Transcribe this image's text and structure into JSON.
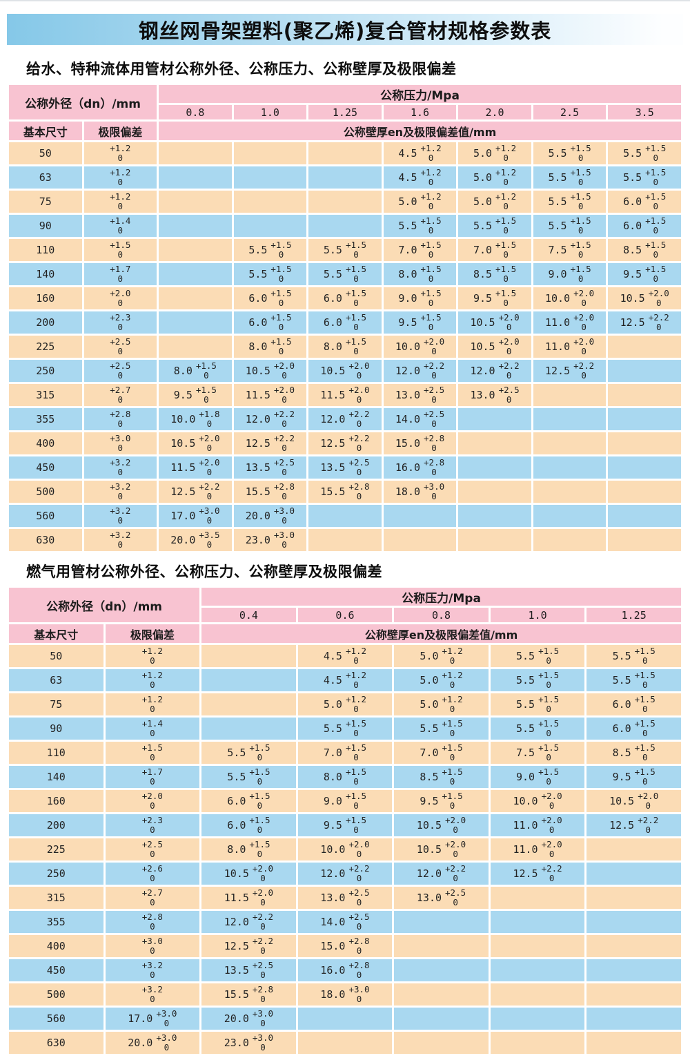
{
  "page_title": "钢丝网骨架塑料(聚乙烯)复合管材规格参数表",
  "colors": {
    "title_bar_left": "#85c8e8",
    "title_bar_right": "#fdfeff",
    "header_pink": "#f8c3d1",
    "row_peach": "#fbdcb5",
    "row_blue": "#a9d8f0"
  },
  "tables": [
    {
      "subtitle": "给水、特种流体用管材公称外径、公称压力、公称壁厚及极限偏差",
      "header": {
        "outer_diameter_label": "公称外径（dn）/mm",
        "pressure_label": "公称压力/Mpa",
        "pressures": [
          "0.8",
          "1.0",
          "1.25",
          "1.6",
          "2.0",
          "2.5",
          "3.5"
        ],
        "basic_size_label": "基本尺寸",
        "deviation_label": "极限偏差",
        "wall_thickness_label": "公称壁厚en及极限偏差值/mm"
      },
      "rows": [
        {
          "dn": "50",
          "dev": "|+1.2|0",
          "cells": [
            null,
            null,
            null,
            "4.5|+1.2|0",
            "5.0|+1.2|0",
            "5.5|+1.5|0",
            "5.5|+1.5|0"
          ]
        },
        {
          "dn": "63",
          "dev": "|+1.2|0",
          "cells": [
            null,
            null,
            null,
            "4.5|+1.2|0",
            "5.0|+1.2|0",
            "5.5|+1.5|0",
            "5.5|+1.5|0"
          ]
        },
        {
          "dn": "75",
          "dev": "|+1.2|0",
          "cells": [
            null,
            null,
            null,
            "5.0|+1.2|0",
            "5.0|+1.2|0",
            "5.5|+1.5|0",
            "6.0|+1.5|0"
          ]
        },
        {
          "dn": "90",
          "dev": "|+1.4|0",
          "cells": [
            null,
            null,
            null,
            "5.5|+1.5|0",
            "5.5|+1.5|0",
            "5.5|+1.5|0",
            "6.0|+1.5|0"
          ]
        },
        {
          "dn": "110",
          "dev": "|+1.5|0",
          "cells": [
            null,
            "5.5|+1.5|0",
            "5.5|+1.5|0",
            "7.0|+1.5|0",
            "7.0|+1.5|0",
            "7.5|+1.5|0",
            "8.5|+1.5|0"
          ]
        },
        {
          "dn": "140",
          "dev": "|+1.7|0",
          "cells": [
            null,
            "5.5|+1.5|0",
            "5.5|+1.5|0",
            "8.0|+1.5|0",
            "8.5|+1.5|0",
            "9.0|+1.5|0",
            "9.5|+1.5|0"
          ]
        },
        {
          "dn": "160",
          "dev": "|+2.0|0",
          "cells": [
            null,
            "6.0|+1.5|0",
            "6.0|+1.5|0",
            "9.0|+1.5|0",
            "9.5|+1.5|0",
            "10.0|+2.0|0",
            "10.5|+2.0|0"
          ]
        },
        {
          "dn": "200",
          "dev": "|+2.3|0",
          "cells": [
            null,
            "6.0|+1.5|0",
            "6.0|+1.5|0",
            "9.5|+1.5|0",
            "10.5|+2.0|0",
            "11.0|+2.0|0",
            "12.5|+2.2|0"
          ]
        },
        {
          "dn": "225",
          "dev": "|+2.5|0",
          "cells": [
            null,
            "8.0|+1.5|0",
            "8.0|+1.5|0",
            "10.0|+2.0|0",
            "10.5|+2.0|0",
            "11.0|+2.0|0",
            null
          ]
        },
        {
          "dn": "250",
          "dev": "|+2.5|0",
          "cells": [
            "8.0|+1.5|0",
            "10.5|+2.0|0",
            "10.5|+2.0|0",
            "12.0|+2.2|0",
            "12.0|+2.2|0",
            "12.5|+2.2|0",
            null
          ]
        },
        {
          "dn": "315",
          "dev": "|+2.7|0",
          "cells": [
            "9.5|+1.5|0",
            "11.5|+2.0|0",
            "11.5|+2.0|0",
            "13.0|+2.5|0",
            "13.0|+2.5|0",
            null,
            null
          ]
        },
        {
          "dn": "355",
          "dev": "|+2.8|0",
          "cells": [
            "10.0|+1.8|0",
            "12.0|+2.2|0",
            "12.0|+2.2|0",
            "14.0|+2.5|0",
            null,
            null,
            null
          ]
        },
        {
          "dn": "400",
          "dev": "|+3.0|0",
          "cells": [
            "10.5|+2.0|0",
            "12.5|+2.2|0",
            "12.5|+2.2|0",
            "15.0|+2.8|0",
            null,
            null,
            null
          ]
        },
        {
          "dn": "450",
          "dev": "|+3.2|0",
          "cells": [
            "11.5|+2.0|0",
            "13.5|+2.5|0",
            "13.5|+2.5|0",
            "16.0|+2.8|0",
            null,
            null,
            null
          ]
        },
        {
          "dn": "500",
          "dev": "|+3.2|0",
          "cells": [
            "12.5|+2.2|0",
            "15.5|+2.8|0",
            "15.5|+2.8|0",
            "18.0|+3.0|0",
            null,
            null,
            null
          ]
        },
        {
          "dn": "560",
          "dev": "|+3.2|0",
          "cells": [
            "17.0|+3.0|0",
            "20.0|+3.0|0",
            null,
            null,
            null,
            null,
            null
          ]
        },
        {
          "dn": "630",
          "dev": "|+3.2|0",
          "cells": [
            "20.0|+3.5|0",
            "23.0|+3.0|0",
            null,
            null,
            null,
            null,
            null
          ]
        }
      ]
    },
    {
      "subtitle": "燃气用管材公称外径、公称压力、公称壁厚及极限偏差",
      "header": {
        "outer_diameter_label": "公称外径（dn）/mm",
        "pressure_label": "公称压力/Mpa",
        "pressures": [
          "0.4",
          "0.6",
          "0.8",
          "1.0",
          "1.25"
        ],
        "basic_size_label": "基本尺寸",
        "deviation_label": "极限偏差",
        "wall_thickness_label": "公称壁厚en及极限偏差值/mm"
      },
      "rows": [
        {
          "dn": "50",
          "dev": "|+1.2|0",
          "cells": [
            null,
            "4.5|+1.2|0",
            "5.0|+1.2|0",
            "5.5|+1.5|0",
            "5.5|+1.5|0"
          ]
        },
        {
          "dn": "63",
          "dev": "|+1.2|0",
          "cells": [
            null,
            "4.5|+1.2|0",
            "5.0|+1.2|0",
            "5.5|+1.5|0",
            "5.5|+1.5|0"
          ]
        },
        {
          "dn": "75",
          "dev": "|+1.2|0",
          "cells": [
            null,
            "5.0|+1.2|0",
            "5.0|+1.2|0",
            "5.5|+1.5|0",
            "6.0|+1.5|0"
          ]
        },
        {
          "dn": "90",
          "dev": "|+1.4|0",
          "cells": [
            null,
            "5.5|+1.5|0",
            "5.5|+1.5|0",
            "5.5|+1.5|0",
            "6.0|+1.5|0"
          ]
        },
        {
          "dn": "110",
          "dev": "|+1.5|0",
          "cells": [
            "5.5|+1.5|0",
            "7.0|+1.5|0",
            "7.0|+1.5|0",
            "7.5|+1.5|0",
            "8.5|+1.5|0"
          ]
        },
        {
          "dn": "140",
          "dev": "|+1.7|0",
          "cells": [
            "5.5|+1.5|0",
            "8.0|+1.5|0",
            "8.5|+1.5|0",
            "9.0|+1.5|0",
            "9.5|+1.5|0"
          ]
        },
        {
          "dn": "160",
          "dev": "|+2.0|0",
          "cells": [
            "6.0|+1.5|0",
            "9.0|+1.5|0",
            "9.5|+1.5|0",
            "10.0|+2.0|0",
            "10.5|+2.0|0"
          ]
        },
        {
          "dn": "200",
          "dev": "|+2.3|0",
          "cells": [
            "6.0|+1.5|0",
            "9.5|+1.5|0",
            "10.5|+2.0|0",
            "11.0|+2.0|0",
            "12.5|+2.2|0"
          ]
        },
        {
          "dn": "225",
          "dev": "|+2.5|0",
          "cells": [
            "8.0|+1.5|0",
            "10.0|+2.0|0",
            "10.5|+2.0|0",
            "11.0|+2.0|0",
            null
          ]
        },
        {
          "dn": "250",
          "dev": "|+2.6|0",
          "cells": [
            "10.5|+2.0|0",
            "12.0|+2.2|0",
            "12.0|+2.2|0",
            "12.5|+2.2|0",
            null
          ]
        },
        {
          "dn": "315",
          "dev": "|+2.7|0",
          "cells": [
            "11.5|+2.0|0",
            "13.0|+2.5|0",
            "13.0|+2.5|0",
            null,
            null
          ]
        },
        {
          "dn": "355",
          "dev": "|+2.8|0",
          "cells": [
            "12.0|+2.2|0",
            "14.0|+2.5|0",
            null,
            null,
            null
          ]
        },
        {
          "dn": "400",
          "dev": "|+3.0|0",
          "cells": [
            "12.5|+2.2|0",
            "15.0|+2.8|0",
            null,
            null,
            null
          ]
        },
        {
          "dn": "450",
          "dev": "|+3.2|0",
          "cells": [
            "13.5|+2.5|0",
            "16.0|+2.8|0",
            null,
            null,
            null
          ]
        },
        {
          "dn": "500",
          "dev": "|+3.2|0",
          "cells": [
            "15.5|+2.8|0",
            "18.0|+3.0|0",
            null,
            null,
            null
          ]
        },
        {
          "dn": "560",
          "dev": "17.0|+3.0|0",
          "cells": [
            "20.0|+3.0|0",
            null,
            null,
            null,
            null
          ]
        },
        {
          "dn": "630",
          "dev": "20.0|+3.0|0",
          "cells": [
            "23.0|+3.0|0",
            null,
            null,
            null,
            null
          ]
        }
      ]
    }
  ]
}
